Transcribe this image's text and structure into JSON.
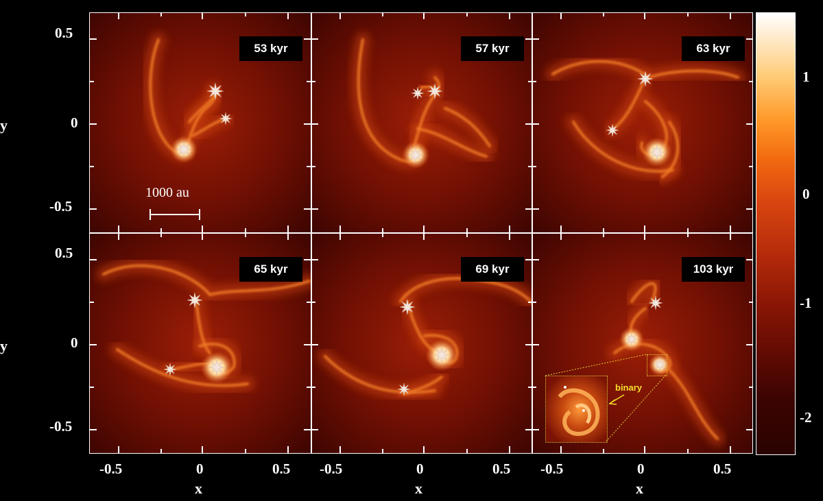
{
  "panels": [
    {
      "time": "53 kyr"
    },
    {
      "time": "57 kyr"
    },
    {
      "time": "63 kyr"
    },
    {
      "time": "65 kyr"
    },
    {
      "time": "69 kyr"
    },
    {
      "time": "103 kyr"
    }
  ],
  "axes": {
    "x_label": "x",
    "y_label": "y",
    "x_ticks": [
      "-0.5",
      "0",
      "0.5"
    ],
    "y_ticks": [
      "0.5",
      "0",
      "-0.5"
    ]
  },
  "scale_bar": {
    "label": "1000 au"
  },
  "colorbar": {
    "ticks": [
      "1",
      "0",
      "-1",
      "-2"
    ]
  },
  "inset": {
    "label": "binary"
  },
  "colors": {
    "background": "#000000",
    "field_dark": "#3a0401",
    "field_mid": "#8a1605",
    "filament": "#e8661a",
    "core": "#ffffff",
    "inset_border": "#e8d23a"
  }
}
